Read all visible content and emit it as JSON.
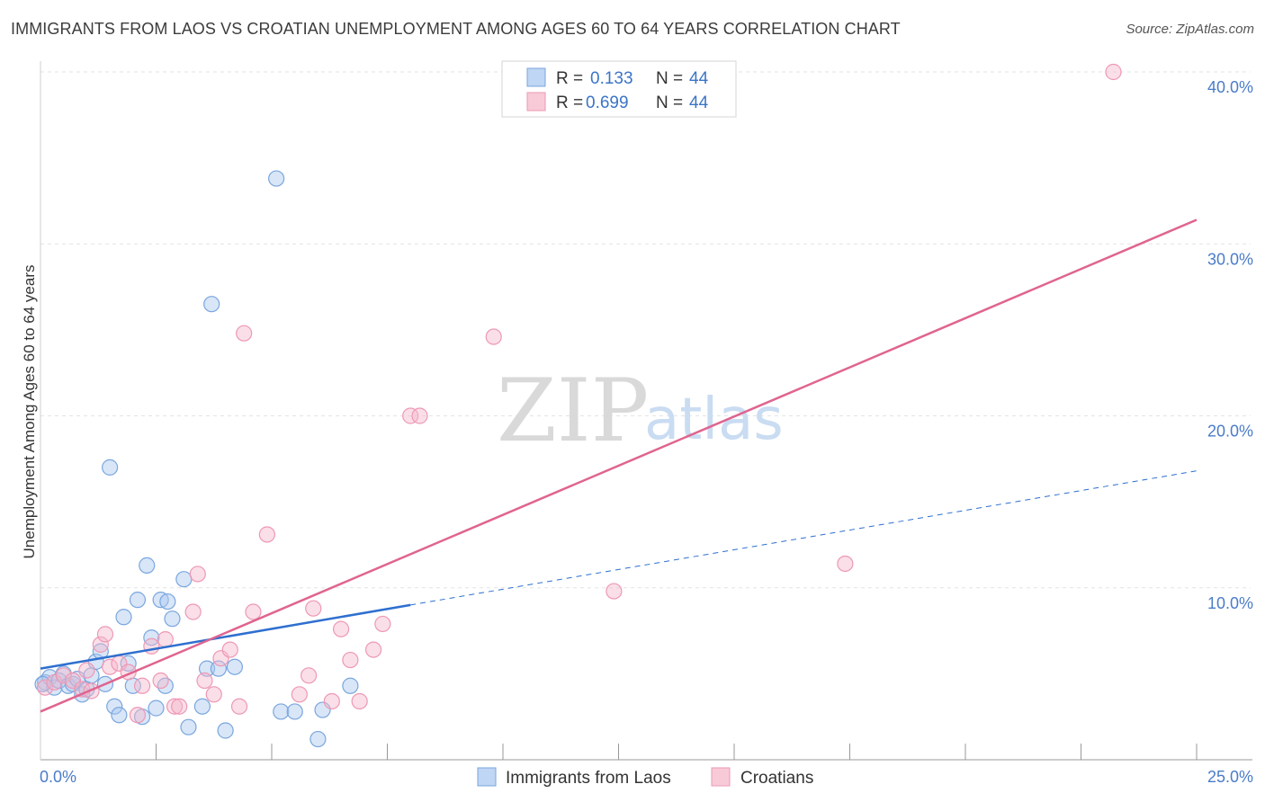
{
  "header": {
    "title": "IMMIGRANTS FROM LAOS VS CROATIAN UNEMPLOYMENT AMONG AGES 60 TO 64 YEARS CORRELATION CHART",
    "source": "Source: ZipAtlas.com"
  },
  "watermark": {
    "zip": "ZIP",
    "atlas": "atlas"
  },
  "legend": {
    "rows": [
      {
        "r_label": "R =",
        "r_value": "0.133",
        "n_label": "N =",
        "n_value": "44"
      },
      {
        "r_label": "R =",
        "r_value": "0.699",
        "n_label": "N =",
        "n_value": "44"
      }
    ]
  },
  "colors": {
    "laos_fill": "#a9c8f0",
    "laos_stroke": "#7aa6de",
    "laos_line": "#2e6fcf",
    "croatian_fill": "#f5b8cb",
    "croatian_stroke": "#ee98b4",
    "croatian_line": "#e0648f",
    "grid": "#e3e3e3",
    "axis": "#999999"
  },
  "chart_data": {
    "type": "scatter",
    "title": "IMMIGRANTS FROM LAOS VS CROATIAN UNEMPLOYMENT AMONG AGES 60 TO 64 YEARS CORRELATION CHART",
    "xlabel": "",
    "ylabel": "Unemployment Among Ages 60 to 64 years",
    "xlim": [
      0,
      25
    ],
    "ylim": [
      0,
      40
    ],
    "x_tick_labels": [
      {
        "value": 0,
        "label": "0.0%"
      },
      {
        "value": 25,
        "label": "25.0%"
      }
    ],
    "y_tick_labels": [
      {
        "value": 10,
        "label": "10.0%"
      },
      {
        "value": 20,
        "label": "20.0%"
      },
      {
        "value": 30,
        "label": "30.0%"
      },
      {
        "value": 40,
        "label": "40.0%"
      }
    ],
    "x_minor_ticks": [
      2.5,
      5,
      7.5,
      10,
      12.5,
      15,
      17.5,
      20,
      22.5,
      25
    ],
    "legend_position": "top-center",
    "series": [
      {
        "name": "Immigrants from Laos",
        "R": 0.133,
        "N": 44,
        "trend": {
          "x_start": 0,
          "y_start": 5.3,
          "x_solid_end": 8.0,
          "y_solid_end": 9.0,
          "x_end": 25,
          "y_end": 16.8
        },
        "points": [
          [
            0.1,
            4.5
          ],
          [
            0.2,
            4.8
          ],
          [
            0.3,
            4.2
          ],
          [
            0.4,
            4.6
          ],
          [
            0.5,
            5.0
          ],
          [
            0.6,
            4.3
          ],
          [
            0.7,
            4.4
          ],
          [
            0.8,
            4.7
          ],
          [
            0.9,
            3.8
          ],
          [
            1.0,
            4.1
          ],
          [
            1.1,
            4.9
          ],
          [
            1.2,
            5.7
          ],
          [
            1.3,
            6.3
          ],
          [
            1.4,
            4.4
          ],
          [
            1.5,
            17.0
          ],
          [
            1.6,
            3.1
          ],
          [
            1.7,
            2.6
          ],
          [
            1.8,
            8.3
          ],
          [
            1.9,
            5.6
          ],
          [
            2.0,
            4.3
          ],
          [
            2.1,
            9.3
          ],
          [
            2.2,
            2.5
          ],
          [
            2.3,
            11.3
          ],
          [
            2.4,
            7.1
          ],
          [
            2.5,
            3.0
          ],
          [
            2.6,
            9.3
          ],
          [
            2.7,
            4.3
          ],
          [
            2.75,
            9.2
          ],
          [
            2.85,
            8.2
          ],
          [
            3.1,
            10.5
          ],
          [
            3.2,
            1.9
          ],
          [
            3.5,
            3.1
          ],
          [
            3.6,
            5.3
          ],
          [
            3.7,
            26.5
          ],
          [
            3.85,
            5.3
          ],
          [
            4.0,
            1.7
          ],
          [
            4.2,
            5.4
          ],
          [
            5.1,
            33.8
          ],
          [
            5.2,
            2.8
          ],
          [
            5.5,
            2.8
          ],
          [
            6.0,
            1.2
          ],
          [
            6.1,
            2.9
          ],
          [
            6.7,
            4.3
          ],
          [
            0.05,
            4.4
          ]
        ]
      },
      {
        "name": "Croatians",
        "R": 0.699,
        "N": 44,
        "trend": {
          "x_start": 0,
          "y_start": 2.8,
          "x_end": 25,
          "y_end": 31.4
        },
        "points": [
          [
            0.1,
            4.2
          ],
          [
            0.3,
            4.5
          ],
          [
            0.5,
            4.9
          ],
          [
            0.7,
            4.6
          ],
          [
            0.9,
            4.1
          ],
          [
            1.0,
            5.2
          ],
          [
            1.1,
            4.0
          ],
          [
            1.3,
            6.7
          ],
          [
            1.4,
            7.3
          ],
          [
            1.5,
            5.4
          ],
          [
            1.7,
            5.6
          ],
          [
            1.9,
            5.1
          ],
          [
            2.1,
            2.6
          ],
          [
            2.2,
            4.3
          ],
          [
            2.4,
            6.6
          ],
          [
            2.6,
            4.6
          ],
          [
            2.7,
            7.0
          ],
          [
            2.9,
            3.1
          ],
          [
            3.0,
            3.1
          ],
          [
            3.3,
            8.6
          ],
          [
            3.4,
            10.8
          ],
          [
            3.55,
            4.6
          ],
          [
            3.75,
            3.8
          ],
          [
            3.9,
            5.9
          ],
          [
            4.1,
            6.4
          ],
          [
            4.3,
            3.1
          ],
          [
            4.4,
            24.8
          ],
          [
            4.6,
            8.6
          ],
          [
            4.9,
            13.1
          ],
          [
            5.6,
            3.8
          ],
          [
            5.8,
            4.9
          ],
          [
            5.9,
            8.8
          ],
          [
            6.3,
            3.4
          ],
          [
            6.5,
            7.6
          ],
          [
            6.7,
            5.8
          ],
          [
            6.9,
            3.4
          ],
          [
            7.2,
            6.4
          ],
          [
            7.4,
            7.9
          ],
          [
            8.0,
            20.0
          ],
          [
            8.2,
            20.0
          ],
          [
            9.8,
            24.6
          ],
          [
            12.4,
            9.8
          ],
          [
            17.4,
            11.4
          ],
          [
            23.2,
            40.0
          ]
        ]
      }
    ]
  }
}
